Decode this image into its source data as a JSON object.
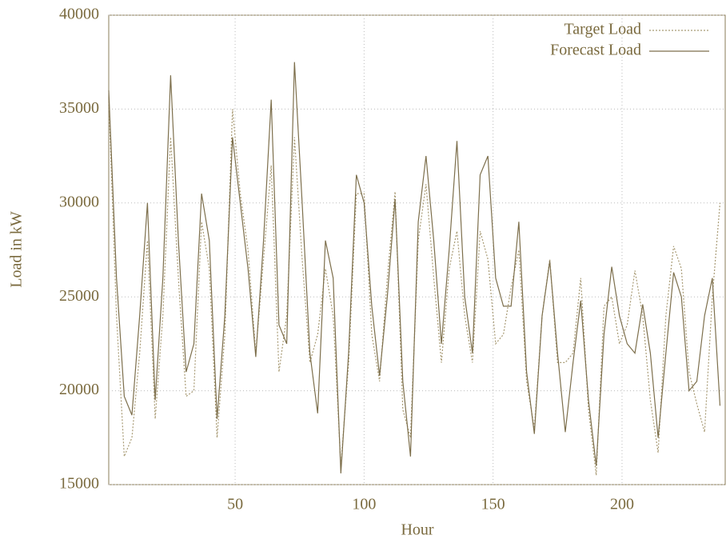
{
  "chart_data": {
    "type": "line",
    "x_label": "Hour",
    "y_label": "Load in kW",
    "xlim": [
      1,
      240
    ],
    "ylim": [
      15000,
      40000
    ],
    "xticks": [
      50,
      100,
      150,
      200
    ],
    "yticks": [
      15000,
      20000,
      25000,
      30000,
      35000,
      40000
    ],
    "grid": true,
    "legend": "top-right",
    "x": [
      1,
      4,
      7,
      10,
      13,
      16,
      19,
      22,
      25,
      28,
      31,
      34,
      37,
      40,
      43,
      46,
      49,
      52,
      55,
      58,
      61,
      64,
      67,
      70,
      73,
      76,
      79,
      82,
      85,
      88,
      91,
      94,
      97,
      100,
      103,
      106,
      109,
      112,
      115,
      118,
      121,
      124,
      127,
      130,
      133,
      136,
      139,
      142,
      145,
      148,
      151,
      154,
      157,
      160,
      163,
      166,
      169,
      172,
      175,
      178,
      181,
      184,
      187,
      190,
      193,
      196,
      199,
      202,
      205,
      208,
      211,
      214,
      217,
      220,
      223,
      226,
      229,
      232,
      235,
      238
    ],
    "series": [
      {
        "name": "Target Load",
        "color": "#a89a74",
        "style": "dotted",
        "values": [
          35500,
          24000,
          16500,
          17500,
          22000,
          28000,
          18500,
          24000,
          33500,
          26000,
          19700,
          20000,
          29000,
          26500,
          17500,
          23000,
          35000,
          30500,
          27500,
          22000,
          27000,
          32000,
          21000,
          24000,
          33500,
          27000,
          21500,
          23000,
          26500,
          24000,
          16000,
          21500,
          30500,
          30500,
          23000,
          20500,
          26000,
          30600,
          19000,
          17500,
          28000,
          31000,
          26000,
          21500,
          26500,
          28500,
          24000,
          21500,
          28500,
          27000,
          22500,
          23000,
          25500,
          27500,
          20500,
          18000,
          24000,
          27000,
          21500,
          21500,
          22000,
          26000,
          19000,
          15500,
          24500,
          25000,
          22500,
          23500,
          26400,
          24000,
          19500,
          16700,
          24000,
          27700,
          26500,
          21000,
          19300,
          17800,
          25000,
          30000
        ]
      },
      {
        "name": "Forecast Load",
        "color": "#7d6f4c",
        "style": "solid",
        "values": [
          36000,
          26000,
          19700,
          18700,
          24000,
          30000,
          19500,
          26000,
          36800,
          28000,
          21000,
          22500,
          30500,
          28000,
          18500,
          24000,
          33500,
          30000,
          26500,
          21800,
          28000,
          35500,
          23500,
          22500,
          37500,
          30000,
          22000,
          18800,
          28000,
          26000,
          15600,
          22000,
          31500,
          30000,
          24500,
          20800,
          25000,
          30200,
          20500,
          16500,
          29000,
          32500,
          28000,
          22500,
          27500,
          33300,
          25000,
          22000,
          31500,
          32500,
          26000,
          24500,
          24500,
          29000,
          21000,
          17700,
          24000,
          26900,
          22000,
          17800,
          21500,
          24800,
          19500,
          16000,
          23000,
          26600,
          24000,
          22500,
          22000,
          24600,
          22000,
          17500,
          22000,
          26300,
          25000,
          20000,
          20500,
          24000,
          26000,
          19200
        ]
      }
    ]
  }
}
